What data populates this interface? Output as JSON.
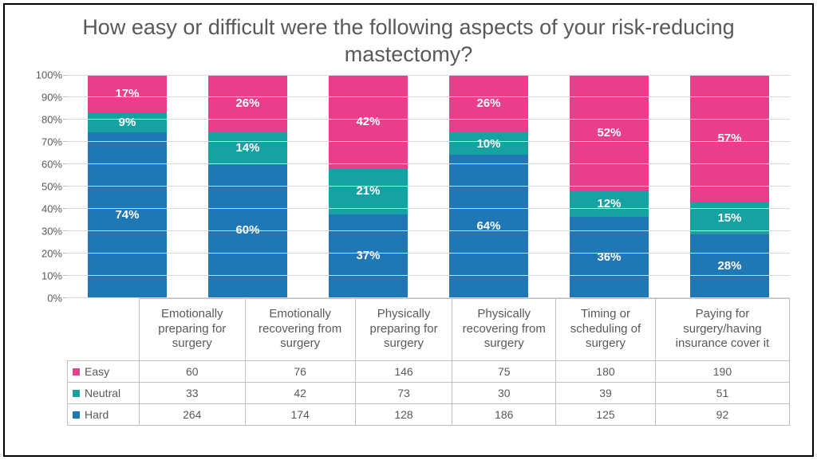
{
  "title": "How easy or difficult were the following aspects of your risk-reducing mastectomy?",
  "chart": {
    "type": "stacked-bar-100",
    "ylim": [
      0,
      100
    ],
    "ytick_step": 10,
    "ytick_suffix": "%",
    "grid_color": "#d9d9d9",
    "axis_color": "#bfbfbf",
    "text_color": "#595959",
    "background": "#ffffff",
    "bar_width_ratio": 0.65,
    "label_fontsize": 15,
    "title_fontsize": 27,
    "categories": [
      "Emotionally preparing for surgery",
      "Emotionally recovering from surgery",
      "Physically preparing for surgery",
      "Physically recovering from surgery",
      "Timing or scheduling of surgery",
      "Paying for surgery/having insurance cover it"
    ],
    "series": [
      {
        "name": "Hard",
        "color": "#1f77b4",
        "percent": [
          74,
          60,
          37,
          64,
          36,
          28
        ],
        "counts": [
          264,
          174,
          128,
          186,
          125,
          92
        ]
      },
      {
        "name": "Neutral",
        "color": "#17a2a2",
        "percent": [
          9,
          14,
          21,
          10,
          12,
          15
        ],
        "counts": [
          33,
          42,
          73,
          30,
          39,
          51
        ]
      },
      {
        "name": "Easy",
        "color": "#e83e8c",
        "percent": [
          17,
          26,
          42,
          26,
          52,
          57
        ],
        "counts": [
          60,
          76,
          146,
          75,
          180,
          190
        ]
      }
    ],
    "table_row_order": [
      "Easy",
      "Neutral",
      "Hard"
    ]
  }
}
